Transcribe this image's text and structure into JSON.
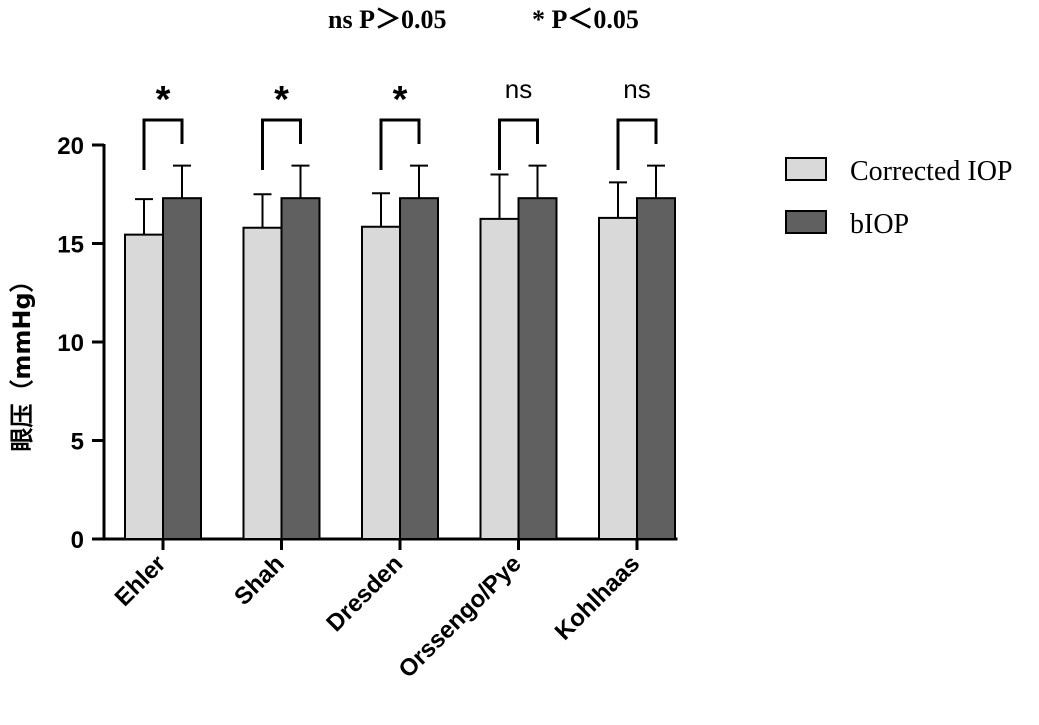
{
  "chart_data": {
    "type": "bar",
    "title": "",
    "xlabel": "",
    "ylabel": "眼压（mmHg）",
    "ylim": [
      0,
      20
    ],
    "yticks": [
      0,
      5,
      10,
      15,
      20
    ],
    "grid": false,
    "legend_position": "right",
    "categories": [
      "Ehler",
      "Shah",
      "Dresden",
      "Orssengo/Pye",
      "Kohlhaas"
    ],
    "series": [
      {
        "name": "Corrected IOP",
        "color": "#d9d9d9",
        "values": [
          15.45,
          15.8,
          15.85,
          16.25,
          16.3
        ],
        "errors": [
          1.8,
          1.7,
          1.7,
          2.25,
          1.8
        ]
      },
      {
        "name": "bIOP",
        "color": "#606060",
        "values": [
          17.3,
          17.3,
          17.3,
          17.3,
          17.3
        ],
        "errors": [
          1.65,
          1.65,
          1.65,
          1.65,
          1.65
        ]
      }
    ],
    "significance": [
      "*",
      "*",
      "*",
      "ns",
      "ns"
    ],
    "annotations": {
      "ns_note": "ns P＞0.05",
      "star_note": "* P＜0.05"
    }
  }
}
